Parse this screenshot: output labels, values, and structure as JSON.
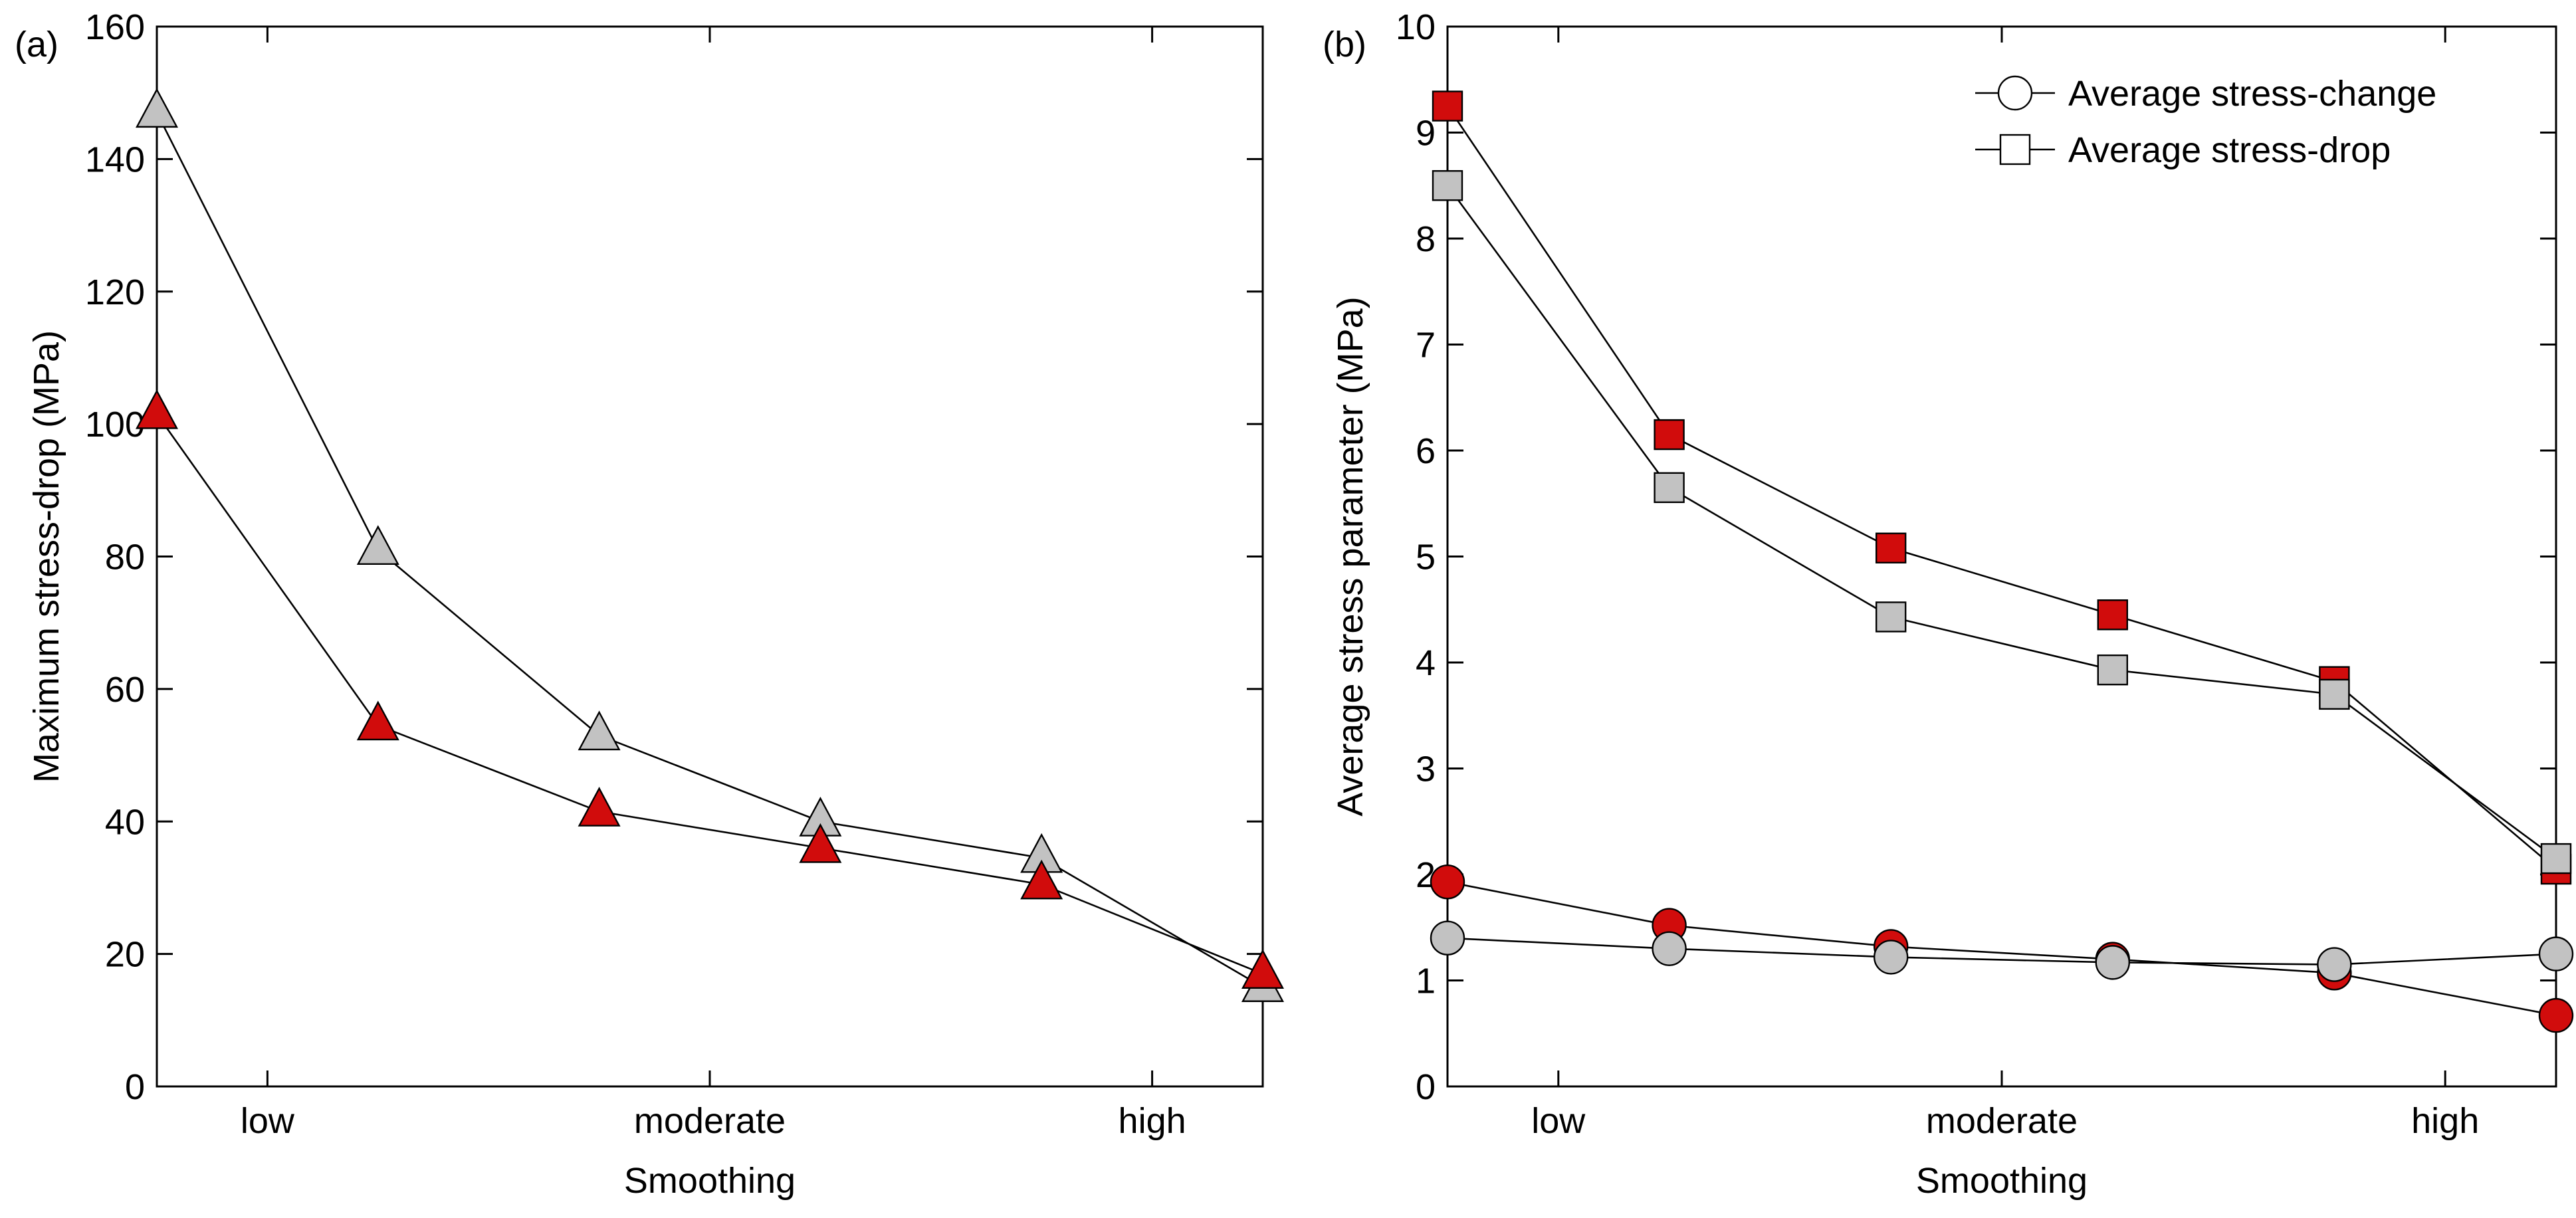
{
  "colors": {
    "red": "#d10c0c",
    "gray": "#c2c2c2",
    "line": "#000000"
  },
  "chart_data": [
    {
      "panel_label": "(a)",
      "type": "line",
      "xlabel": "Smoothing",
      "ylabel": "Maximum stress-drop (MPa)",
      "ylim": [
        0,
        160
      ],
      "yticks": [
        0,
        20,
        40,
        60,
        80,
        100,
        120,
        140,
        160
      ],
      "xlim": [
        0,
        5
      ],
      "xtick_labels": [
        {
          "label": "low",
          "x": 0.5
        },
        {
          "label": "moderate",
          "x": 2.5
        },
        {
          "label": "high",
          "x": 4.5
        }
      ],
      "grid": false,
      "x": [
        0,
        1,
        2,
        3,
        4,
        5
      ],
      "series": [
        {
          "marker": "triangle",
          "color": "#c2c2c2",
          "values": [
            147,
            81,
            53,
            40,
            34.5,
            15
          ]
        },
        {
          "marker": "triangle",
          "color": "#d10c0c",
          "values": [
            101.5,
            54.5,
            41.5,
            36,
            30.5,
            17
          ]
        }
      ]
    },
    {
      "panel_label": "(b)",
      "type": "line",
      "xlabel": "Smoothing",
      "ylabel": "Average stress parameter (MPa)",
      "ylim": [
        0,
        10
      ],
      "yticks": [
        0,
        1,
        2,
        3,
        4,
        5,
        6,
        7,
        8,
        9,
        10
      ],
      "xlim": [
        0,
        5
      ],
      "xtick_labels": [
        {
          "label": "low",
          "x": 0.5
        },
        {
          "label": "moderate",
          "x": 2.5
        },
        {
          "label": "high",
          "x": 4.5
        }
      ],
      "grid": false,
      "legend_position": "top-right",
      "legend": [
        {
          "label": "Average stress-change",
          "marker": "circle"
        },
        {
          "label": "Average stress-drop",
          "marker": "square"
        }
      ],
      "x": [
        0,
        1,
        2,
        3,
        4,
        5
      ],
      "series": [
        {
          "marker": "square",
          "color": "#d10c0c",
          "values": [
            9.25,
            6.15,
            5.08,
            4.45,
            3.82,
            2.05
          ]
        },
        {
          "marker": "square",
          "color": "#c2c2c2",
          "values": [
            8.5,
            5.65,
            4.43,
            3.93,
            3.7,
            2.15
          ]
        },
        {
          "marker": "circle",
          "color": "#d10c0c",
          "values": [
            1.93,
            1.52,
            1.32,
            1.2,
            1.07,
            0.67
          ]
        },
        {
          "marker": "circle",
          "color": "#c2c2c2",
          "values": [
            1.4,
            1.3,
            1.22,
            1.17,
            1.15,
            1.25
          ]
        }
      ]
    }
  ]
}
